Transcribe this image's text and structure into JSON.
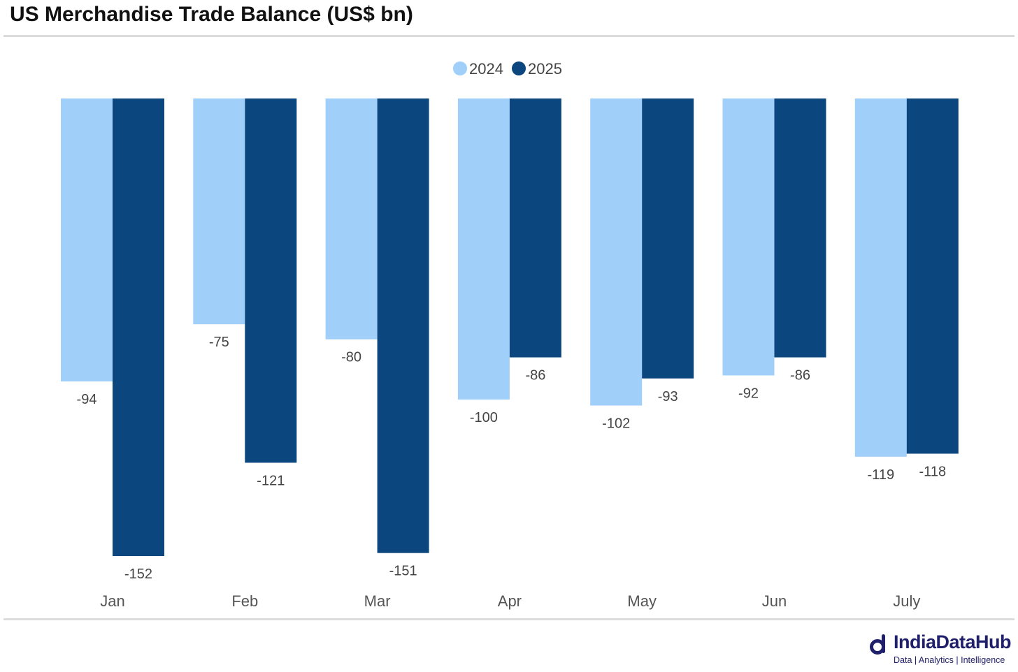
{
  "title": "US Merchandise Trade Balance (US$ bn)",
  "brand": {
    "name": "IndiaDataHub",
    "tagline": "Data | Analytics | Intelligence",
    "logo_icon": "d-logo-icon",
    "color": "#1f1f6b"
  },
  "chart_data": {
    "type": "bar",
    "categories": [
      "Jan",
      "Feb",
      "Mar",
      "Apr",
      "May",
      "Jun",
      "July"
    ],
    "series": [
      {
        "name": "2024",
        "color": "#a0cffa",
        "values": [
          -94,
          -75,
          -80,
          -100,
          -102,
          -92,
          -119
        ]
      },
      {
        "name": "2025",
        "color": "#0b467e",
        "values": [
          -152,
          -121,
          -151,
          -86,
          -93,
          -86,
          -118
        ]
      }
    ],
    "title": "US Merchandise Trade Balance (US$ bn)",
    "xlabel": "",
    "ylabel": "",
    "ylim": [
      -152,
      0
    ],
    "grid": false,
    "legend": "top-center",
    "data_labels": true
  }
}
